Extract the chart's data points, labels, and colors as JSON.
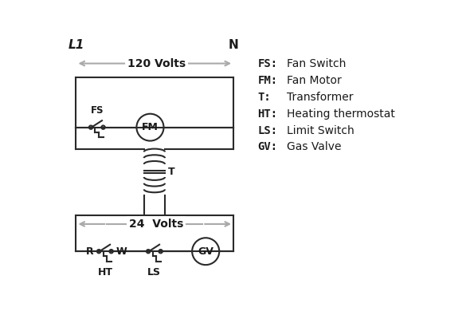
{
  "bg_color": "#ffffff",
  "line_color": "#2a2a2a",
  "gray_color": "#aaaaaa",
  "text_color": "#1a1a1a",
  "legend_items": [
    [
      "FS:",
      "Fan Switch"
    ],
    [
      "FM:",
      "Fan Motor"
    ],
    [
      "T:",
      "Transformer"
    ],
    [
      "HT:",
      "Heating thermostat"
    ],
    [
      "LS:",
      "Limit Switch"
    ],
    [
      "GV:",
      "Gas Valve"
    ]
  ],
  "L1_label": "L1",
  "N_label": "N",
  "volts120_label": "120 Volts",
  "volts24_label": "24  Volts",
  "FS_label": "FS",
  "FM_label": "FM",
  "T_label": "T",
  "HT_label": "HT",
  "LS_label": "LS",
  "GV_label": "GV",
  "R_label": "R",
  "W_label": "W"
}
